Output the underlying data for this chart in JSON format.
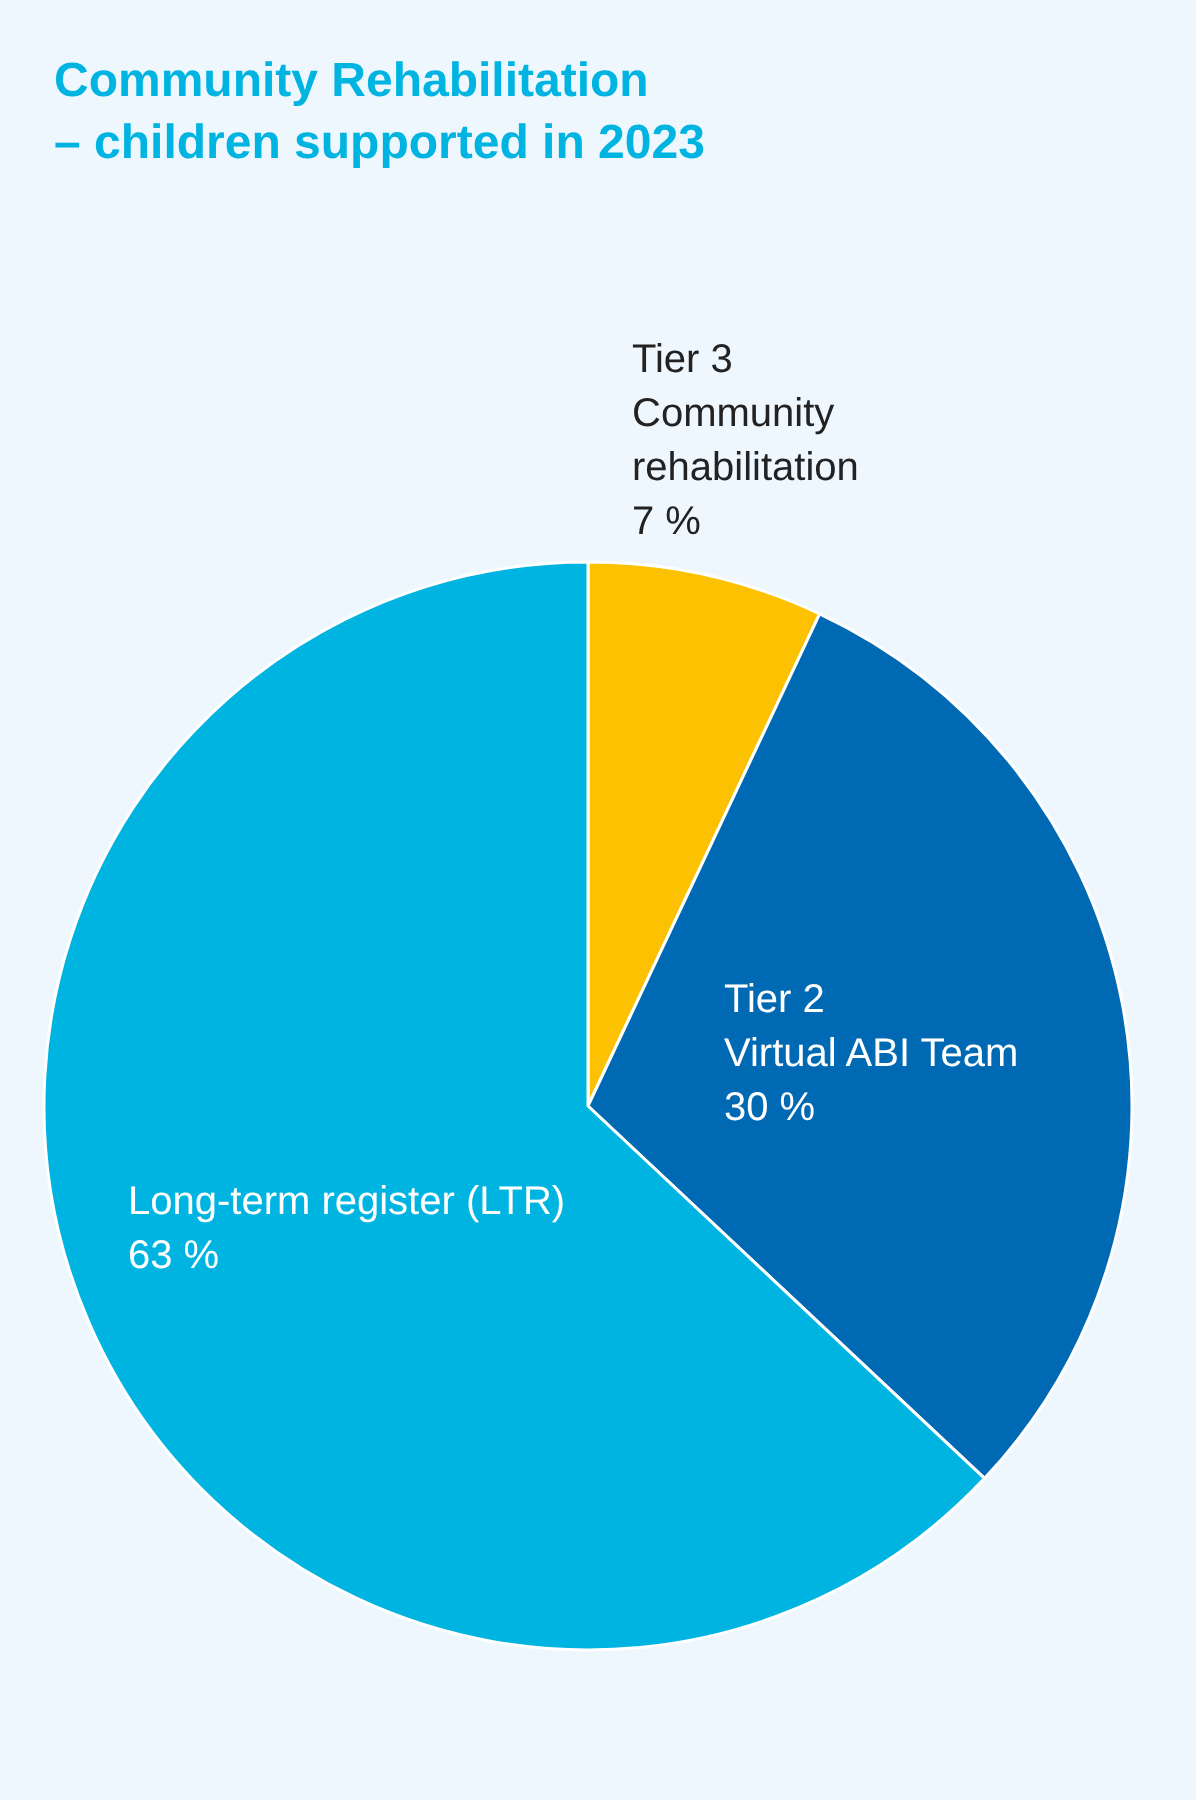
{
  "chart_data": {
    "type": "pie",
    "title": "Community Rehabilitation\n– children supported in 2023",
    "categories": [
      "Tier 3\nCommunity\nrehabilitation",
      "Tier 2\nVirtual ABI Team",
      "Long-term register (LTR)"
    ],
    "values": [
      7,
      30,
      63
    ],
    "colors": [
      "#fcc100",
      "#0069b4",
      "#00b4e1"
    ],
    "value_labels": [
      "7 %",
      "30 %",
      "63 %"
    ]
  }
}
